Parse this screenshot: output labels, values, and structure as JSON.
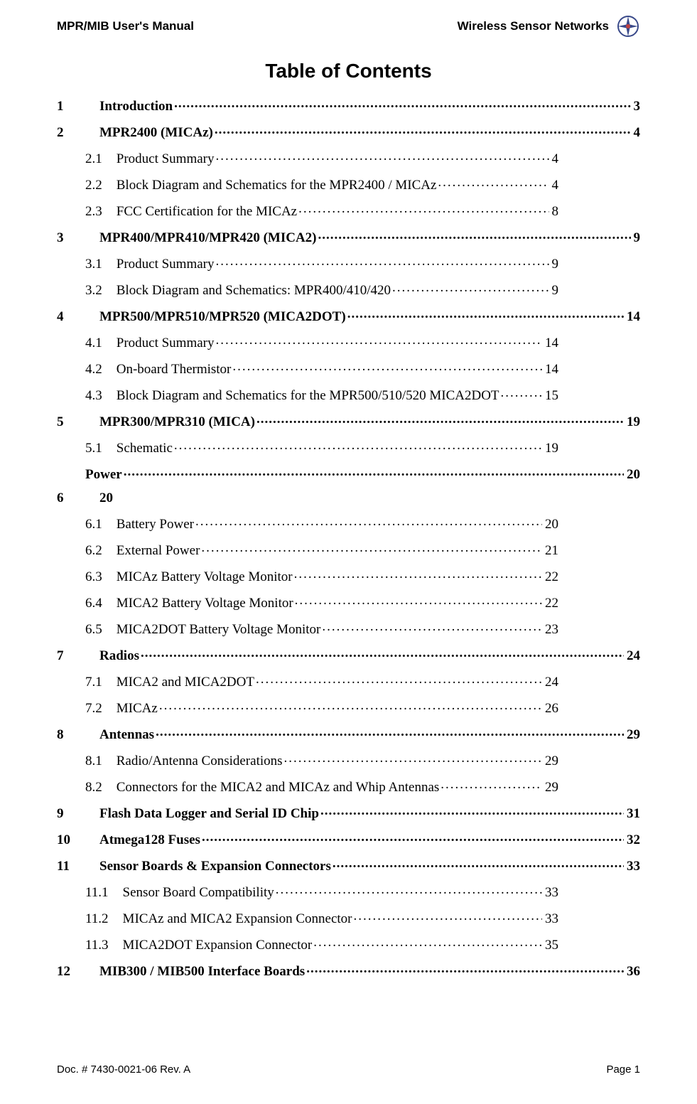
{
  "header": {
    "left": "MPR/MIB User's Manual",
    "right": "Wireless Sensor Networks"
  },
  "title": "Table of Contents",
  "toc": [
    {
      "level": 1,
      "num": "1",
      "label": "Introduction",
      "page": "3"
    },
    {
      "level": 1,
      "num": "2",
      "label": "MPR2400 (MICAz) ",
      "page": "4"
    },
    {
      "level": 2,
      "num": "2.1",
      "label": "Product Summary",
      "page": "4"
    },
    {
      "level": 2,
      "num": "2.2",
      "label": "Block Diagram and Schematics for the MPR2400 / MICAz",
      "page": "4"
    },
    {
      "level": 2,
      "num": "2.3",
      "label": "FCC Certification for the MICAz",
      "page": "8"
    },
    {
      "level": 1,
      "num": "3",
      "label": "MPR400/MPR410/MPR420 (MICA2)",
      "page": "9"
    },
    {
      "level": 2,
      "num": "3.1",
      "label": "Product Summary",
      "page": "9"
    },
    {
      "level": 2,
      "num": "3.2",
      "label": "Block Diagram and Schematics: MPR400/410/420 ",
      "page": "9"
    },
    {
      "level": 1,
      "num": "4",
      "label": "MPR500/MPR510/MPR520 (MICA2DOT) ",
      "page": "14"
    },
    {
      "level": 2,
      "num": "4.1",
      "label": "Product Summary",
      "page": "14"
    },
    {
      "level": 2,
      "num": "4.2",
      "label": "On-board Thermistor ",
      "page": "14"
    },
    {
      "level": 2,
      "num": "4.3",
      "label": "Block Diagram and Schematics for the MPR500/510/520 MICA2DOT",
      "page": "15"
    },
    {
      "level": 1,
      "num": "5",
      "label": "MPR300/MPR310 (MICA)",
      "page": "19"
    },
    {
      "level": 2,
      "num": "5.1",
      "label": "Schematic ",
      "page": "19"
    },
    {
      "level": 1,
      "num": "",
      "label": "Power",
      "page": "20",
      "special": "power"
    },
    {
      "level": 1,
      "num": "6",
      "label": "20",
      "page": "",
      "nodots": true
    },
    {
      "level": 2,
      "num": "6.1",
      "label": "Battery Power",
      "page": "20"
    },
    {
      "level": 2,
      "num": "6.2",
      "label": "External Power",
      "page": "21"
    },
    {
      "level": 2,
      "num": "6.3",
      "label": "MICAz Battery Voltage Monitor ",
      "page": "22"
    },
    {
      "level": 2,
      "num": "6.4",
      "label": "MICA2 Battery Voltage Monitor ",
      "page": "22"
    },
    {
      "level": 2,
      "num": "6.5",
      "label": "MICA2DOT Battery Voltage Monitor ",
      "page": "23"
    },
    {
      "level": 1,
      "num": "7",
      "label": "Radios ",
      "page": "24"
    },
    {
      "level": 2,
      "num": "7.1",
      "label": "MICA2 and MICA2DOT",
      "page": "24"
    },
    {
      "level": 2,
      "num": "7.2",
      "label": "MICAz",
      "page": "26"
    },
    {
      "level": 1,
      "num": "8",
      "label": "Antennas",
      "page": "29"
    },
    {
      "level": 2,
      "num": "8.1",
      "label": "Radio/Antenna Considerations ",
      "page": "29"
    },
    {
      "level": 2,
      "num": "8.2",
      "label": "Connectors for the MICA2 and MICAz and Whip Antennas",
      "page": "29"
    },
    {
      "level": 1,
      "num": "9",
      "label": "Flash Data Logger and Serial ID Chip",
      "page": "31"
    },
    {
      "level": 1,
      "num": "10",
      "label": "Atmega128 Fuses",
      "page": "32"
    },
    {
      "level": 1,
      "num": "11",
      "label": "Sensor Boards & Expansion Connectors ",
      "page": "33"
    },
    {
      "level": 2,
      "num": "11.1",
      "label": "Sensor Board Compatibility ",
      "page": "33"
    },
    {
      "level": 2,
      "num": "11.2",
      "label": "MICAz and MICA2 Expansion Connector ",
      "page": "33"
    },
    {
      "level": 2,
      "num": "11.3",
      "label": "MICA2DOT Expansion Connector ",
      "page": "35"
    },
    {
      "level": 1,
      "num": "12",
      "label": "MIB300 / MIB500 Interface Boards ",
      "page": "36"
    }
  ],
  "footer": {
    "left": "Doc. # 7430-0021-06 Rev. A",
    "right": "Page 1"
  },
  "colors": {
    "text": "#000000",
    "bg": "#ffffff",
    "logo_primary": "#3a4a8a",
    "logo_accent": "#c04040"
  }
}
